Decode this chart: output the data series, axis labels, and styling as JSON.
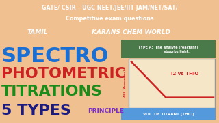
{
  "bg_top": "#3a7fd5",
  "bg_second": "#e07820",
  "bg_main": "#f0c090",
  "top_text": "GATE/ CSIR – UGC NEET/JEE/IIT JAM/NET/SAT/",
  "top_text2": "Competitive exam questions",
  "second_text1": "TAMIL",
  "second_text2": "KARANS CHEM WORLD",
  "spectro_color": "#1a6fd4",
  "photo_color": "#cc2222",
  "titrations_color": "#1a8c1a",
  "types_color": "#1a1a80",
  "principle_color": "#7b2fc9",
  "graph_header_bg": "#4a7a4a",
  "graph_header_text": "TYPE A:  The analyte (reactant)\n             absorbs light.",
  "graph_bg": "#f5e6c8",
  "graph_border": "#8899aa",
  "graph_line_color": "#cc2222",
  "graph_label": "I2 vs THIO",
  "graph_label_color": "#cc2222",
  "y_axis_label": "ABS (Acorrected)",
  "x_axis_label": "VOL. OF TITRANT (THIO)",
  "x_axis_label_bg": "#5599dd",
  "y_axis_label_color": "#cc2222"
}
